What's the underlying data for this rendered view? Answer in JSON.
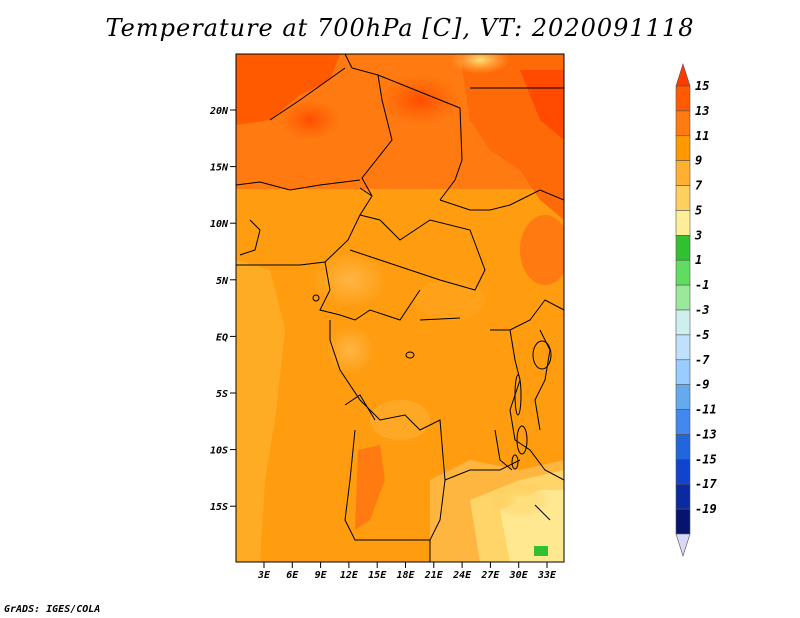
{
  "title": "Temperature at 700hPa [C], VT: 2020091118",
  "credit": "GrADS: IGES/COLA",
  "map": {
    "lat_labels": [
      "20N",
      "15N",
      "10N",
      "5N",
      "EQ",
      "5S",
      "10S",
      "15S"
    ],
    "lon_labels": [
      "3E",
      "6E",
      "9E",
      "12E",
      "15E",
      "18E",
      "21E",
      "24E",
      "27E",
      "30E",
      "33E"
    ]
  },
  "colorbar": {
    "labels": [
      "15",
      "13",
      "11",
      "9",
      "7",
      "5",
      "3",
      "1",
      "-1",
      "-3",
      "-5",
      "-7",
      "-9",
      "-11",
      "-13",
      "-15",
      "-17",
      "-19"
    ],
    "colors": [
      "#ff3a00",
      "#ff5a00",
      "#ff7a10",
      "#ff9900",
      "#ffb030",
      "#ffd060",
      "#ffee99",
      "#30c030",
      "#60dd60",
      "#9be89b",
      "#cfefef",
      "#bfe0ff",
      "#99ccff",
      "#66aaee",
      "#4488ee",
      "#2266dd",
      "#1144cc",
      "#0a2aa0",
      "#061470",
      "#d8d8f8"
    ]
  }
}
